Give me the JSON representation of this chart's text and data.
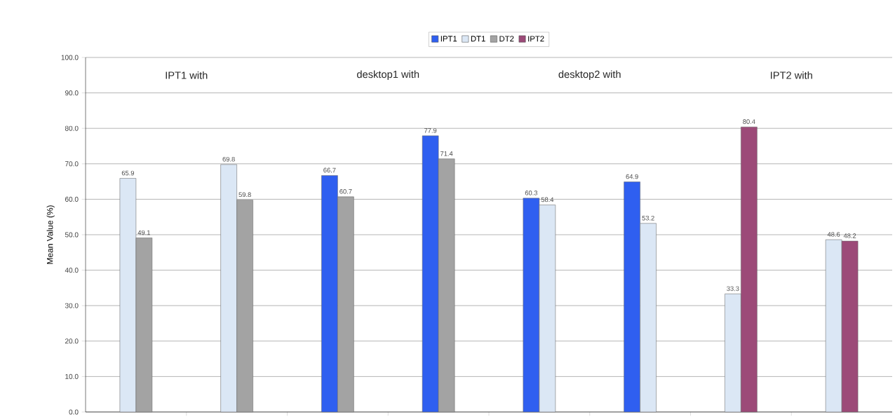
{
  "chart_data": {
    "type": "bar",
    "ylabel": "Mean Value (%)",
    "categories": [
      null,
      null,
      null,
      null,
      null,
      null,
      null,
      null
    ],
    "series": [
      {
        "name": "IPT1",
        "color": "#2f5ff0",
        "values": [
          null,
          null,
          66.7,
          77.9,
          60.3,
          64.9,
          null,
          null
        ]
      },
      {
        "name": "DT1",
        "color": "#dbe7f5",
        "values": [
          65.9,
          69.8,
          null,
          null,
          58.4,
          53.2,
          33.3,
          48.6
        ]
      },
      {
        "name": "DT2",
        "color": "#a3a3a3",
        "values": [
          49.1,
          59.8,
          60.7,
          71.4,
          null,
          null,
          null,
          null
        ]
      },
      {
        "name": "IPT2",
        "color": "#9c4a78",
        "values": [
          null,
          null,
          null,
          null,
          null,
          null,
          80.4,
          48.2
        ]
      }
    ],
    "annotations": [
      "IPT1 with",
      "desktop1 with",
      "desktop2 with",
      "IPT2 with"
    ],
    "ylim": [
      0,
      100
    ],
    "yticks": [
      {
        "value": 0,
        "label": "0.0"
      },
      {
        "value": 10,
        "label": "10.0"
      },
      {
        "value": 20,
        "label": "20.0"
      },
      {
        "value": 30,
        "label": "30.0"
      },
      {
        "value": 40,
        "label": "40.0"
      },
      {
        "value": 50,
        "label": "50.0"
      },
      {
        "value": 60,
        "label": "60.0"
      },
      {
        "value": 70,
        "label": "70.0"
      },
      {
        "value": 80,
        "label": "80.0"
      },
      {
        "value": 90,
        "label": "90.0"
      },
      {
        "value": 100,
        "label": "100.0"
      }
    ],
    "grid": "y",
    "legend": "top",
    "data_labels": true
  }
}
